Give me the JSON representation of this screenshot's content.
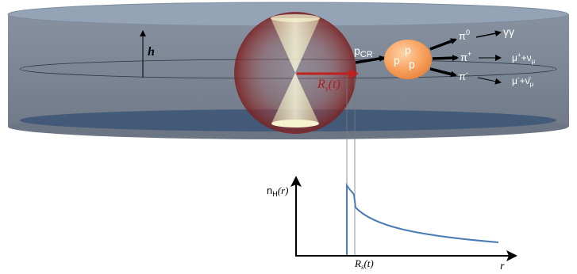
{
  "disk": {
    "h_label": "h",
    "radius_label_main": "R",
    "radius_label_sub": "s",
    "radius_label_suffix": "(t)"
  },
  "reaction": {
    "pcr_main": "p",
    "pcr_sub": "CR",
    "proton_1": "p",
    "proton_2": "p",
    "proton_3": "p",
    "pi0_main": "π",
    "pi0_sup": "0",
    "gamma_products": "γγ",
    "piplus_main": "π",
    "piplus_sup": "+",
    "muplus_main": "μ",
    "muplus_sup": "+",
    "muplus_plus": "+ν",
    "muplus_nu_sub": "μ",
    "piminus_main": "π",
    "piminus_sup": "-",
    "muminus_main": "μ",
    "muminus_sup": "-",
    "muminus_plus": "+ν̄",
    "muminus_nu_sub": "μ"
  },
  "profile": {
    "ylabel_main": "n",
    "ylabel_sub": "H",
    "ylabel_suffix": "(r)",
    "xlabel": "r",
    "xtick_main": "R",
    "xtick_sub": "s",
    "xtick_suffix": "(t)"
  },
  "colors": {
    "disk_body": "#7d8795",
    "disk_top": "#93a2b4",
    "shadow": "#3e5675",
    "sphere": "#8a2a2a",
    "cone": "#f2f0c8",
    "arrow_red": "#c0211f",
    "proton": "#f5a05f",
    "curve": "#4a7cb5"
  }
}
